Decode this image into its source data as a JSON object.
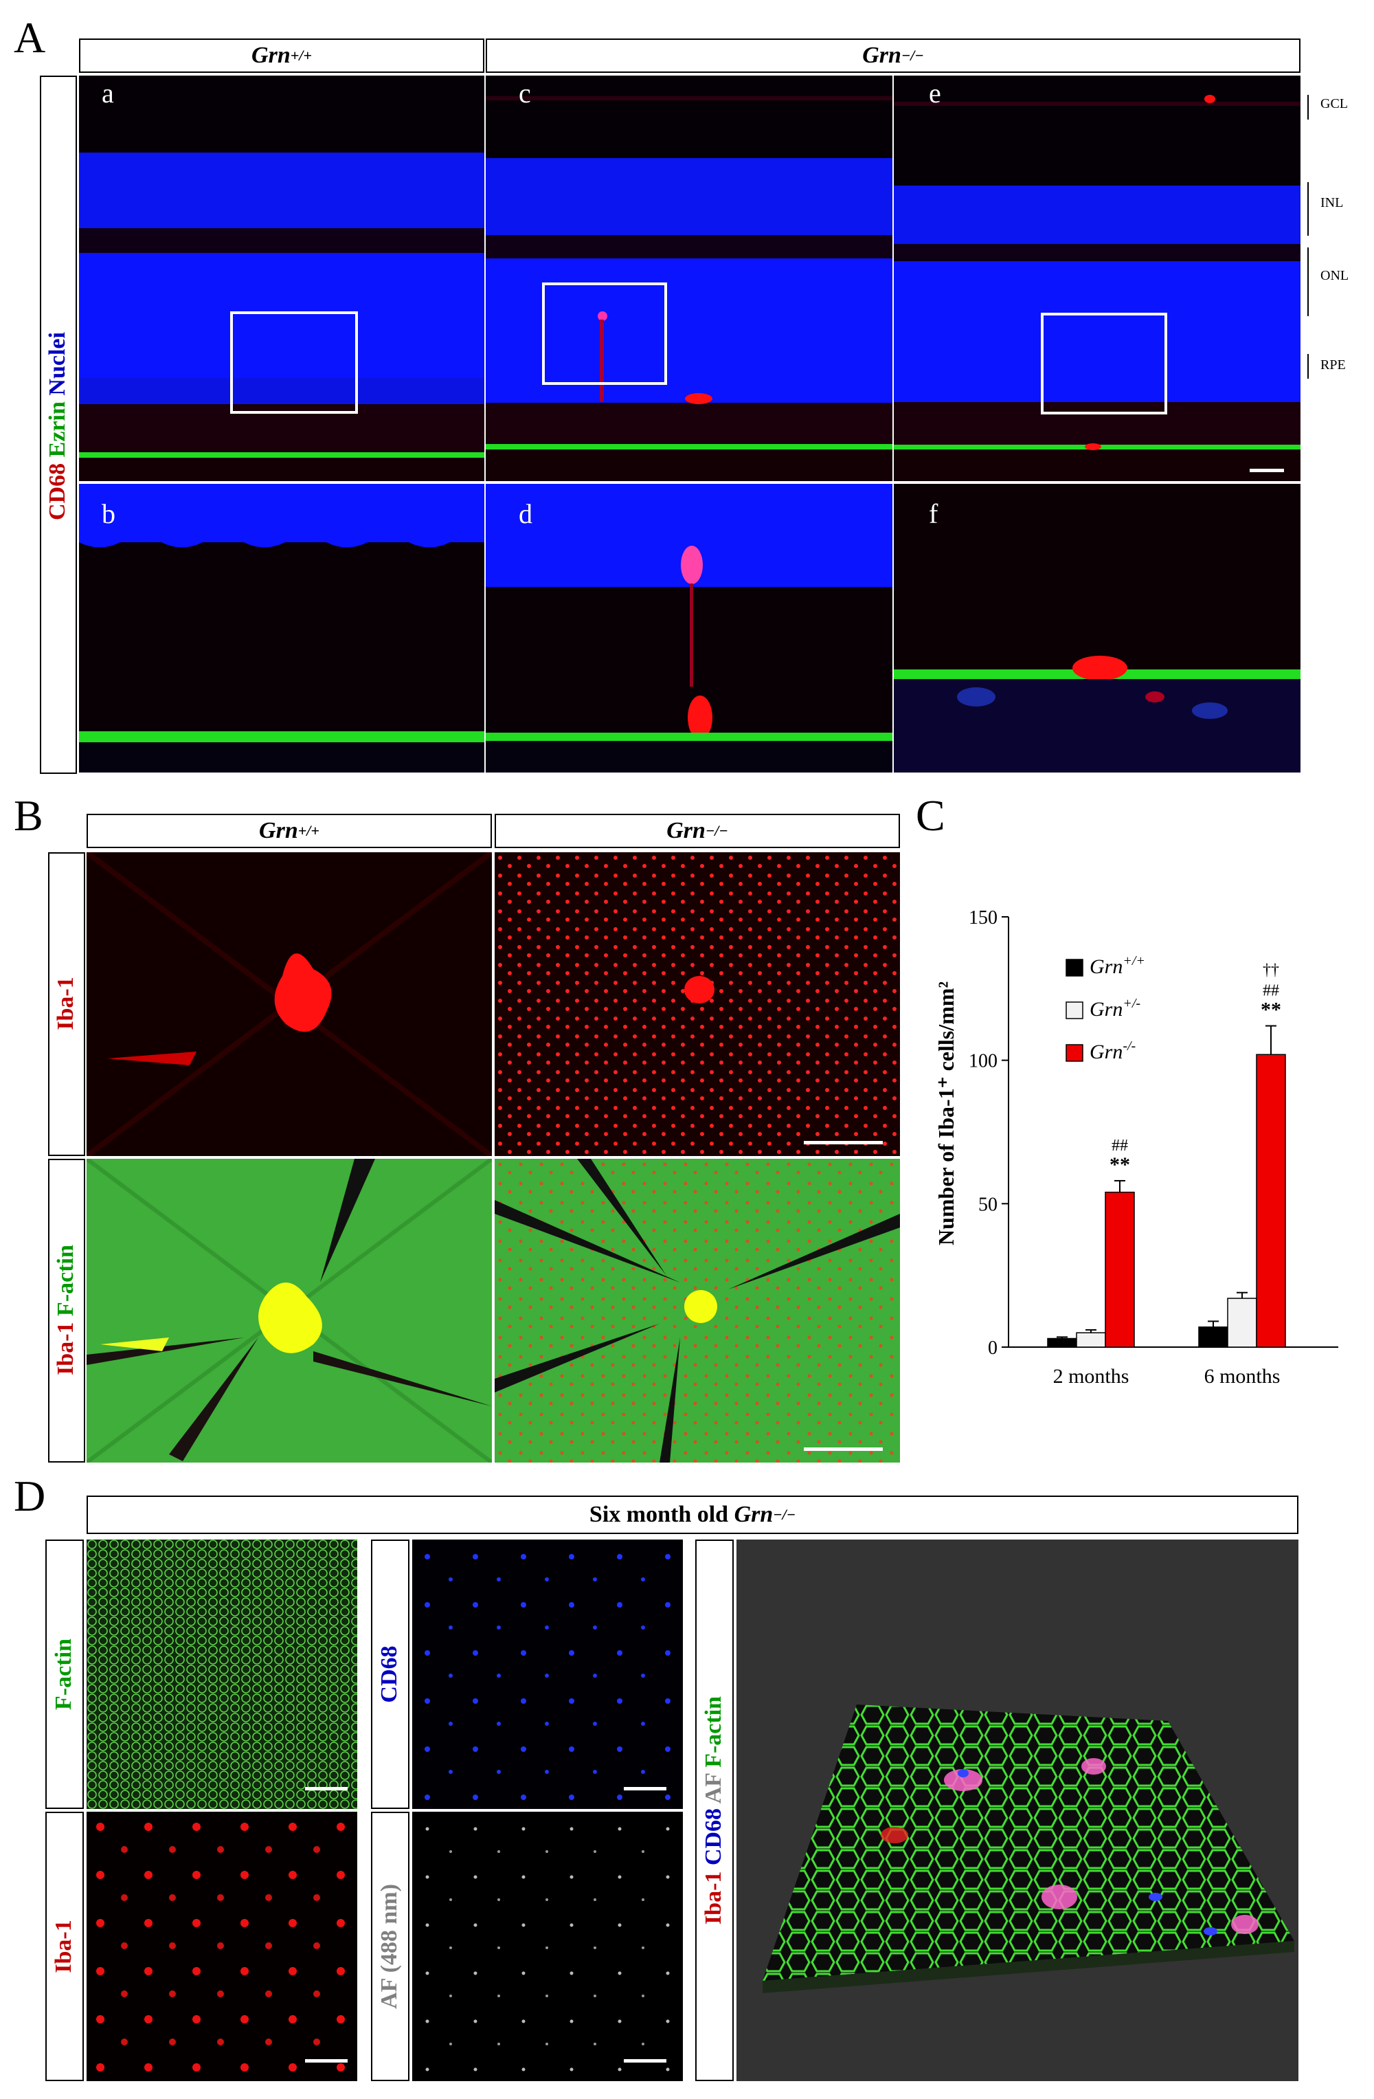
{
  "panels": {
    "A": {
      "letter": "A",
      "header_wt_base": "Grn",
      "header_wt_sup": "+/+",
      "header_ko_base": "Grn",
      "header_ko_sup": "−/−",
      "side_label": {
        "red": "CD68",
        "green": "Ezrin",
        "blue": "Nuclei"
      },
      "sub_labels": [
        "a",
        "b",
        "c",
        "d",
        "e",
        "f"
      ],
      "layers": [
        "GCL",
        "INL",
        "ONL",
        "RPE"
      ]
    },
    "B": {
      "letter": "B",
      "header_wt_base": "Grn",
      "header_wt_sup": "+/+",
      "header_ko_base": "Grn",
      "header_ko_sup": "−/−",
      "row1_label": "Iba-1",
      "row2_label_red": "Iba-1",
      "row2_label_green": "F-actin"
    },
    "C": {
      "letter": "C"
    },
    "D": {
      "letter": "D",
      "header_prefix": "Six month old ",
      "header_base": "Grn",
      "header_sup": "−/−",
      "labels": {
        "factin": "F-actin",
        "cd68": "CD68",
        "iba1": "Iba-1",
        "af": "AF (488 nm)",
        "combo_red": "Iba-1",
        "combo_blue": "CD68",
        "combo_gray": "AF",
        "combo_green": "F-actin"
      }
    }
  },
  "chart_data": {
    "type": "bar",
    "categories": [
      "2 months",
      "6 months"
    ],
    "ylabel": "Number of Iba-1⁺ cells/mm²",
    "ylim": [
      0,
      150
    ],
    "yticks": [
      0,
      50,
      100,
      150
    ],
    "series": [
      {
        "name": "Grn+/+",
        "label_base": "Grn",
        "label_sup": "+/+",
        "color": "#000000",
        "values": [
          3,
          7
        ],
        "errors": [
          0.5,
          2
        ]
      },
      {
        "name": "Grn+/-",
        "label_base": "Grn",
        "label_sup": "+/-",
        "color": "#f2f2f2",
        "values": [
          5,
          17
        ],
        "errors": [
          1,
          2
        ]
      },
      {
        "name": "Grn-/-",
        "label_base": "Grn",
        "label_sup": "-/-",
        "color": "#ee0000",
        "values": [
          54,
          102
        ],
        "errors": [
          4,
          10
        ]
      }
    ],
    "annotations": [
      {
        "category": "2 months",
        "series": "Grn-/-",
        "lines": [
          "##",
          "**"
        ]
      },
      {
        "category": "6 months",
        "series": "Grn-/-",
        "lines": [
          "††",
          "##",
          "**"
        ]
      }
    ]
  },
  "colors": {
    "nuclei_blue": "#0a14ff",
    "ezrin_green": "#22dd22",
    "cd68_red": "#ff1111",
    "label_red": "#c00000",
    "label_green": "#009900",
    "label_blue": "#0000c0",
    "label_gray": "#808080"
  }
}
